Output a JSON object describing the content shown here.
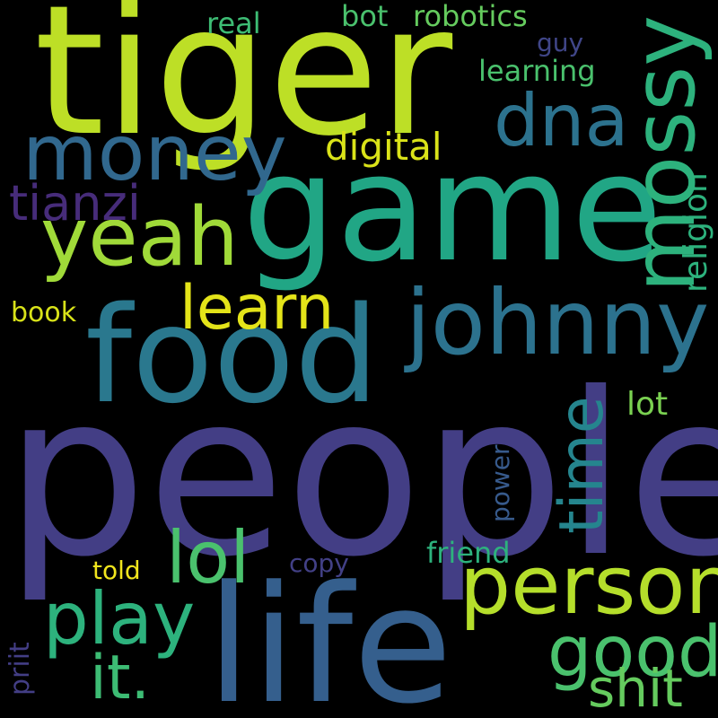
{
  "palette": {
    "background": "#000000",
    "tiger": "#bddf26",
    "people": "#433e85",
    "life": "#355f8d",
    "game": "#21a685",
    "food": "#2a788e",
    "johnny": "#2c728e",
    "mossy": "#2db27d",
    "person": "#b5de2b",
    "money": "#31688e",
    "yeah": "#a0da39",
    "dna": "#2c728e",
    "learn": "#e4e419",
    "time": "#25858e",
    "lol": "#4ac16d",
    "play": "#2db27d",
    "good": "#4ac16d",
    "shit": "#65cb5e",
    "it": "#3dbc74",
    "tianzi": "#472c7a",
    "digital": "#dae319",
    "religion": "#2db27d",
    "book": "#d8e219",
    "real": "#3dbc74",
    "bot": "#4ac16d",
    "robotics": "#65cb5e",
    "guy": "#404688",
    "learning": "#4ac16d",
    "lot": "#7ad151",
    "power": "#375a8c",
    "friend": "#2db27d",
    "copy": "#424086",
    "told": "#f1e51d",
    "priit": "#433e85"
  },
  "words": {
    "tiger": "tiger",
    "people": "people",
    "life": "life",
    "game": "game",
    "food": "food",
    "johnny": "johnny",
    "mossy": "mossy",
    "person": "person",
    "money": "money",
    "yeah": "yeah",
    "dna": "dna",
    "learn": "learn",
    "time": "time",
    "lol": "lol",
    "play": "play",
    "good": "good",
    "shit": "shit",
    "it": "it.",
    "tianzi": "tianzi",
    "digital": "digital",
    "religion": "religion",
    "book": "book",
    "real": "real",
    "bot": "bot",
    "robotics": "robotics",
    "guy": "guy",
    "learning": "learning",
    "lot": "lot",
    "power": "power",
    "friend": "friend",
    "copy": "copy",
    "told": "told",
    "priit": "priit"
  }
}
